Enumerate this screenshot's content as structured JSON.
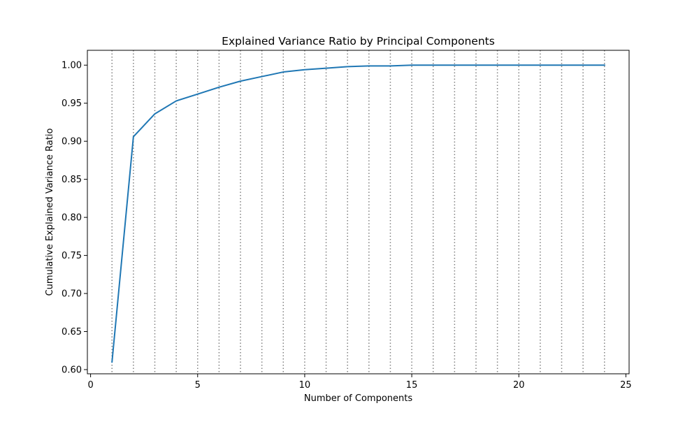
{
  "chart_data": {
    "type": "line",
    "title": "Explained Variance Ratio by Principal Components",
    "xlabel": "Number of Components",
    "ylabel": "Cumulative Explained Variance Ratio",
    "xlim": [
      -0.15,
      25.15
    ],
    "ylim": [
      0.5945,
      1.0195
    ],
    "xticks": [
      0,
      5,
      10,
      15,
      20,
      25
    ],
    "xtick_labels": [
      "0",
      "5",
      "10",
      "15",
      "20",
      "25"
    ],
    "yticks": [
      0.6,
      0.65,
      0.7,
      0.75,
      0.8,
      0.85,
      0.9,
      0.95,
      1.0
    ],
    "ytick_labels": [
      "0.60",
      "0.65",
      "0.70",
      "0.75",
      "0.80",
      "0.85",
      "0.90",
      "0.95",
      "1.00"
    ],
    "grid": false,
    "vlines": [
      1,
      2,
      3,
      4,
      5,
      6,
      7,
      8,
      9,
      10,
      11,
      12,
      13,
      14,
      15,
      16,
      17,
      18,
      19,
      20,
      21,
      22,
      23,
      24
    ],
    "vline_color": "#808080",
    "series": [
      {
        "color": "#1f77b4",
        "x": [
          1,
          2,
          3,
          4,
          5,
          6,
          7,
          8,
          9,
          10,
          11,
          12,
          13,
          14,
          15,
          16,
          17,
          18,
          19,
          20,
          21,
          22,
          23,
          24
        ],
        "y": [
          0.61,
          0.906,
          0.936,
          0.953,
          0.962,
          0.971,
          0.979,
          0.985,
          0.991,
          0.994,
          0.996,
          0.998,
          0.999,
          0.999,
          1.0,
          1.0,
          1.0,
          1.0,
          1.0,
          1.0,
          1.0,
          1.0,
          1.0,
          1.0
        ]
      }
    ]
  }
}
